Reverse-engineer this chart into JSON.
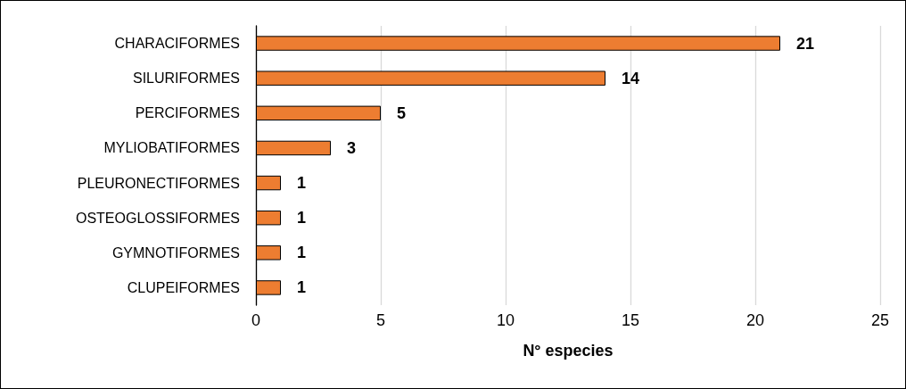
{
  "chart_data": {
    "type": "bar",
    "orientation": "horizontal",
    "xlabel": "N° especies",
    "categories": [
      "CHARACIFORMES",
      "SILURIFORMES",
      "PERCIFORMES",
      "MYLIOBATIFORMES",
      "PLEURONECTIFORMES",
      "OSTEOGLOSSIFORMES",
      "GYMNOTIFORMES",
      "CLUPEIFORMES"
    ],
    "values": [
      21,
      14,
      5,
      3,
      1,
      1,
      1,
      1
    ],
    "color": "#ed7d31",
    "xlim": [
      0,
      25
    ],
    "xticks": [
      0,
      5,
      10,
      15,
      20,
      25
    ],
    "grid": "x",
    "data_labels": true
  }
}
